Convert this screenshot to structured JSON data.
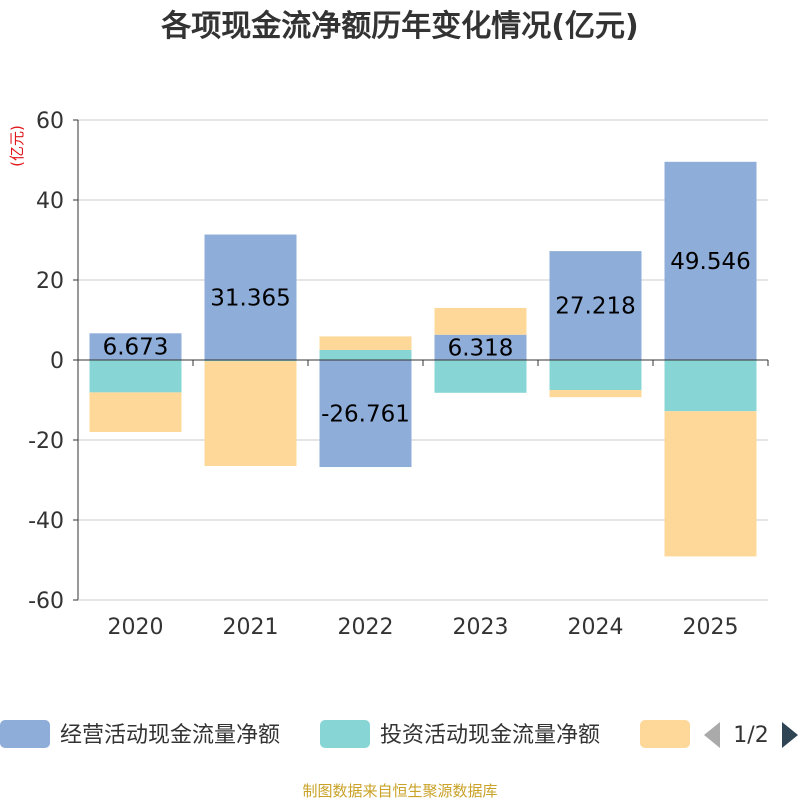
{
  "chart_data": {
    "type": "bar",
    "stacked": true,
    "title": "各项现金流净额历年变化情况(亿元)",
    "ylabel": "(亿元)",
    "xlabel": "",
    "categories": [
      "2020",
      "2021",
      "2022",
      "2023",
      "2024",
      "2025"
    ],
    "ylim": [
      -60,
      60
    ],
    "yticks": [
      60,
      40,
      20,
      0,
      -20,
      -40,
      -60
    ],
    "series": [
      {
        "name": "经营活动现金流量净额",
        "color": "#8eadd9",
        "values": [
          6.673,
          31.365,
          -26.761,
          6.318,
          27.218,
          49.546
        ],
        "labeled": true
      },
      {
        "name": "投资活动现金流量净额",
        "color": "#88d5d5",
        "values": [
          -8.1,
          -0.3,
          2.5,
          -8.2,
          -7.5,
          -12.8
        ],
        "labeled": false
      },
      {
        "name": "",
        "color": "#fed899",
        "values": [
          -9.9,
          -26.2,
          3.4,
          6.7,
          -1.8,
          -36.3
        ],
        "labeled": false
      }
    ],
    "legend_position": "bottom",
    "legend_page": "1/2",
    "grid": true
  },
  "source": "制图数据来自恒生聚源数据库"
}
